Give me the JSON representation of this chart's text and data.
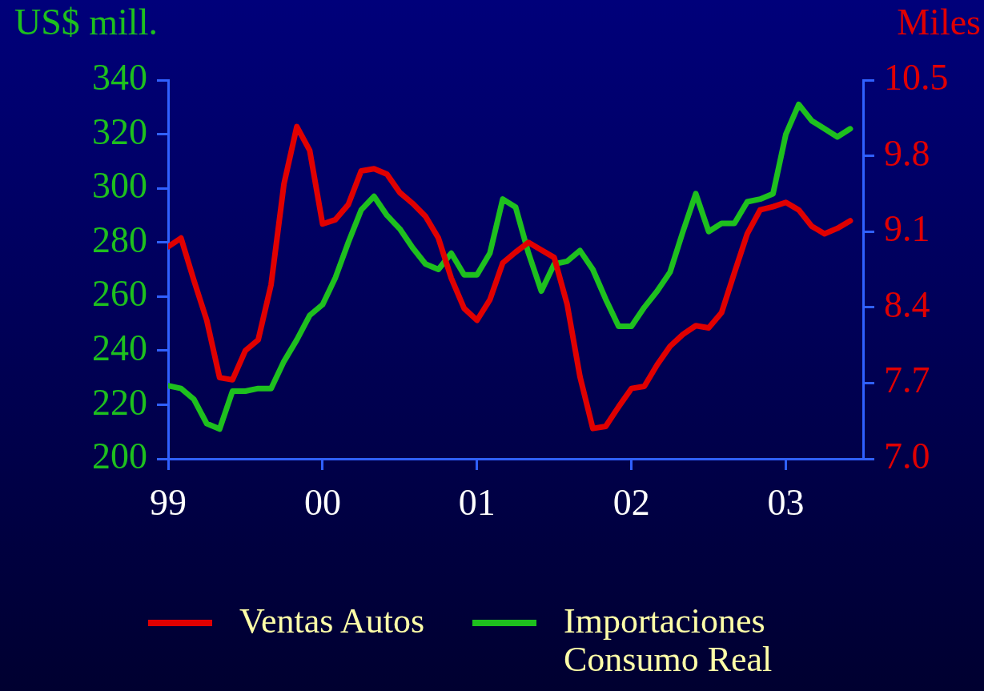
{
  "chart_data": {
    "type": "line",
    "ylabel": "US$ mill.",
    "y2label": "Miles",
    "x": [
      "1999-01",
      "1999-02",
      "1999-03",
      "1999-04",
      "1999-05",
      "1999-06",
      "1999-07",
      "1999-08",
      "1999-09",
      "1999-10",
      "1999-11",
      "1999-12",
      "2000-01",
      "2000-02",
      "2000-03",
      "2000-04",
      "2000-05",
      "2000-06",
      "2000-07",
      "2000-08",
      "2000-09",
      "2000-10",
      "2000-11",
      "2000-12",
      "2001-01",
      "2001-02",
      "2001-03",
      "2001-04",
      "2001-05",
      "2001-06",
      "2001-07",
      "2001-08",
      "2001-09",
      "2001-10",
      "2001-11",
      "2001-12",
      "2002-01",
      "2002-02",
      "2002-03",
      "2002-04",
      "2002-05",
      "2002-06",
      "2002-07",
      "2002-08",
      "2002-09",
      "2002-10",
      "2002-11",
      "2002-12",
      "2003-01",
      "2003-02",
      "2003-03",
      "2003-04",
      "2003-05",
      "2003-06"
    ],
    "series": [
      {
        "name": "Ventas Autos",
        "color": "#e00000",
        "axis": "y2",
        "values": [
          8.96,
          9.04,
          8.65,
          8.28,
          7.75,
          7.73,
          8.0,
          8.1,
          8.61,
          9.54,
          10.07,
          9.85,
          9.17,
          9.21,
          9.35,
          9.66,
          9.68,
          9.63,
          9.46,
          9.36,
          9.24,
          9.04,
          8.67,
          8.39,
          8.28,
          8.47,
          8.81,
          8.91,
          9.0,
          8.93,
          8.86,
          8.43,
          7.76,
          7.28,
          7.3,
          7.48,
          7.65,
          7.67,
          7.87,
          8.04,
          8.15,
          8.23,
          8.21,
          8.35,
          8.72,
          9.08,
          9.3,
          9.33,
          9.37,
          9.3,
          9.15,
          9.08,
          9.13,
          9.2
        ]
      },
      {
        "name": "Importaciones Consumo Real",
        "color": "#1ec01e",
        "values": [
          227,
          226,
          222,
          213,
          211,
          225,
          225,
          226,
          226,
          236,
          244,
          253,
          257,
          267,
          280,
          292,
          297,
          290,
          285,
          278,
          272,
          270,
          276,
          268,
          268,
          276,
          296,
          293,
          276,
          262,
          272,
          273,
          277,
          270,
          259,
          249,
          249,
          256,
          262,
          269,
          284,
          298,
          284,
          287,
          287,
          295,
          296,
          298,
          320,
          331,
          325,
          322,
          319,
          322
        ]
      }
    ],
    "xlim": [
      "1999-01",
      "2003-07"
    ],
    "xticks": [
      {
        "value": "1999-01",
        "label": "99"
      },
      {
        "value": "2000-01",
        "label": "00"
      },
      {
        "value": "2001-01",
        "label": "01"
      },
      {
        "value": "2002-01",
        "label": "02"
      },
      {
        "value": "2003-01",
        "label": "03"
      }
    ],
    "ylim": [
      200,
      340
    ],
    "yticks": [
      200,
      220,
      240,
      260,
      280,
      300,
      320,
      340
    ],
    "y2lim": [
      7.0,
      10.5
    ],
    "y2ticks": [
      {
        "value": 7,
        "label": "7.0"
      },
      {
        "value": 7.7,
        "label": "7.7"
      },
      {
        "value": 8.4,
        "label": "8.4"
      },
      {
        "value": 9.1,
        "label": "9.1"
      },
      {
        "value": 9.8,
        "label": "9.8"
      },
      {
        "value": 10.5,
        "label": "10.5"
      }
    ],
    "grid": false,
    "legend": "bottom",
    "marker": "none",
    "line_style": "solid"
  }
}
